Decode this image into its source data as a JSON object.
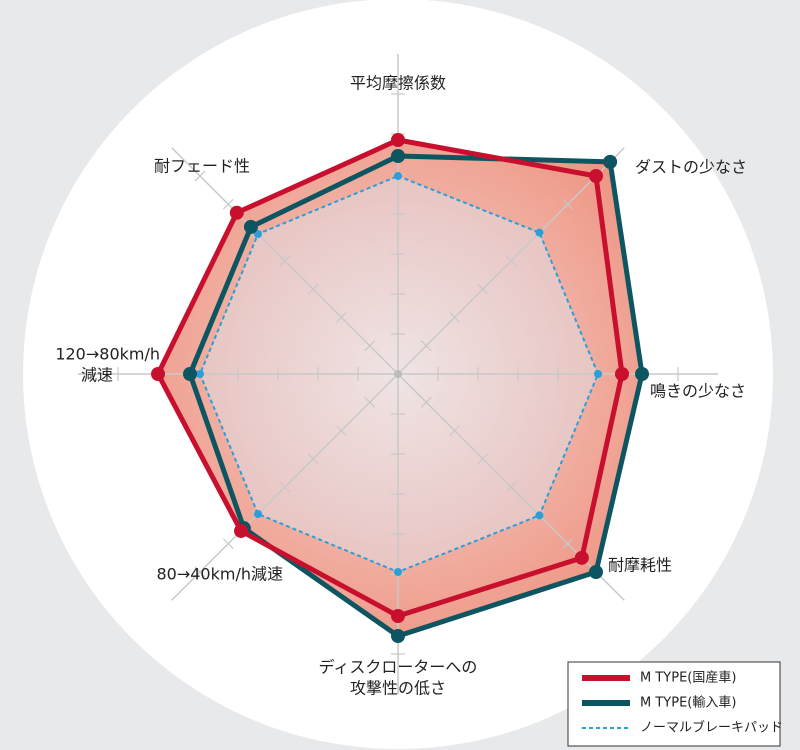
{
  "chart_data": {
    "type": "radar",
    "categories": [
      [
        "平均摩擦係数"
      ],
      [
        "ダストの少なさ"
      ],
      [
        "鳴きの少なさ"
      ],
      [
        "耐摩耗性"
      ],
      [
        "ディスクローターへの",
        "攻撃性の低さ"
      ],
      [
        "80→40km/h減速"
      ],
      [
        "120→80km/h",
        "減速"
      ],
      [
        "耐フェード性"
      ]
    ],
    "rlim": [
      0,
      160
    ],
    "rticks": [
      20,
      40,
      60,
      80,
      100,
      120,
      140
    ],
    "series": [
      {
        "name": "M TYPE(国産車)",
        "color": "#c8102e",
        "values": [
          117,
          140,
          112,
          130,
          121,
          111,
          120,
          114
        ]
      },
      {
        "name": "M TYPE(輸入車)",
        "color": "#0d5560",
        "values": [
          109,
          150,
          122,
          140,
          131,
          109,
          104,
          104
        ]
      },
      {
        "name": "ノーマルブレーキパッド",
        "color": "#2a9fd8",
        "dashed": true,
        "values": [
          99,
          100,
          100,
          100,
          99,
          99,
          99,
          99
        ]
      }
    ]
  }
}
